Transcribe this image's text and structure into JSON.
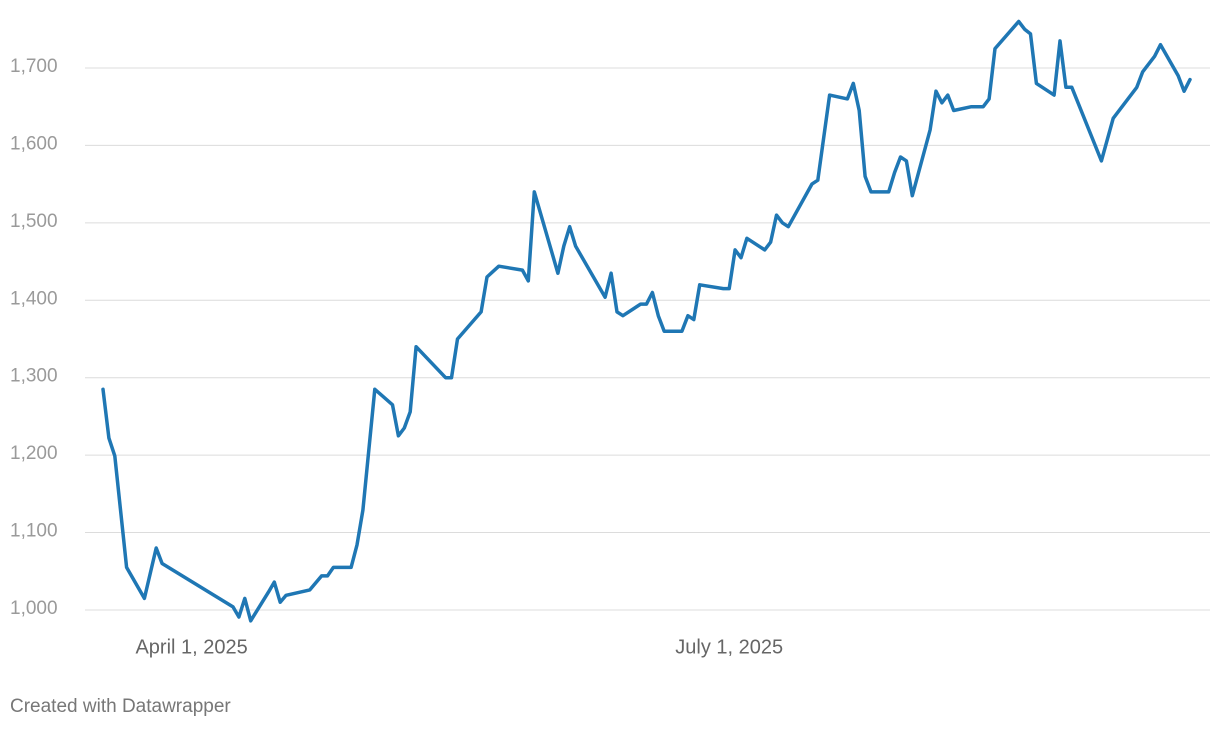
{
  "chart_data": {
    "type": "line",
    "footer": "Created with Datawrapper",
    "x": [
      "2025-03-17",
      "2025-03-18",
      "2025-03-19",
      "2025-03-21",
      "2025-03-24",
      "2025-03-26",
      "2025-03-27",
      "2025-04-08",
      "2025-04-09",
      "2025-04-10",
      "2025-04-11",
      "2025-04-14",
      "2025-04-15",
      "2025-04-16",
      "2025-04-17",
      "2025-04-21",
      "2025-04-23",
      "2025-04-24",
      "2025-04-25",
      "2025-04-28",
      "2025-04-29",
      "2025-04-30",
      "2025-05-02",
      "2025-05-05",
      "2025-05-06",
      "2025-05-07",
      "2025-05-08",
      "2025-05-09",
      "2025-05-14",
      "2025-05-15",
      "2025-05-16",
      "2025-05-20",
      "2025-05-21",
      "2025-05-22",
      "2025-05-23",
      "2025-05-27",
      "2025-05-28",
      "2025-05-29",
      "2025-06-02",
      "2025-06-03",
      "2025-06-04",
      "2025-06-05",
      "2025-06-10",
      "2025-06-11",
      "2025-06-12",
      "2025-06-13",
      "2025-06-16",
      "2025-06-17",
      "2025-06-18",
      "2025-06-19",
      "2025-06-20",
      "2025-06-23",
      "2025-06-24",
      "2025-06-25",
      "2025-06-26",
      "2025-06-30",
      "2025-07-01",
      "2025-07-02",
      "2025-07-03",
      "2025-07-04",
      "2025-07-07",
      "2025-07-08",
      "2025-07-09",
      "2025-07-10",
      "2025-07-11",
      "2025-07-15",
      "2025-07-16",
      "2025-07-18",
      "2025-07-21",
      "2025-07-22",
      "2025-07-23",
      "2025-07-24",
      "2025-07-25",
      "2025-07-28",
      "2025-07-29",
      "2025-07-30",
      "2025-07-31",
      "2025-08-01",
      "2025-08-04",
      "2025-08-05",
      "2025-08-06",
      "2025-08-07",
      "2025-08-08",
      "2025-08-11",
      "2025-08-13",
      "2025-08-14",
      "2025-08-15",
      "2025-08-19",
      "2025-08-20",
      "2025-08-21",
      "2025-08-22",
      "2025-08-25",
      "2025-08-26",
      "2025-08-27",
      "2025-08-28",
      "2025-09-02",
      "2025-09-04",
      "2025-09-08",
      "2025-09-09",
      "2025-09-11",
      "2025-09-12",
      "2025-09-15",
      "2025-09-16",
      "2025-09-17"
    ],
    "series": [
      {
        "color": "#1f77b4",
        "values": [
          1285,
          1222,
          1199,
          1055,
          1015,
          1080,
          1060,
          1004,
          991,
          1015,
          986,
          1023,
          1036,
          1010,
          1019,
          1026,
          1044,
          1044,
          1055,
          1055,
          1084,
          1129,
          1285,
          1265,
          1225,
          1235,
          1256,
          1340,
          1300,
          1300,
          1350,
          1385,
          1430,
          1437,
          1444,
          1439,
          1425,
          1540,
          1435,
          1470,
          1495,
          1470,
          1404,
          1435,
          1385,
          1380,
          1395,
          1395,
          1410,
          1380,
          1360,
          1360,
          1380,
          1375,
          1420,
          1415,
          1415,
          1465,
          1455,
          1480,
          1465,
          1475,
          1510,
          1500,
          1495,
          1550,
          1555,
          1665,
          1660,
          1680,
          1645,
          1560,
          1540,
          1540,
          1565,
          1585,
          1580,
          1535,
          1620,
          1670,
          1655,
          1665,
          1645,
          1650,
          1650,
          1660,
          1725,
          1760,
          1750,
          1744,
          1680,
          1665,
          1735,
          1675,
          1675,
          1580,
          1635,
          1675,
          1695,
          1715,
          1730,
          1690,
          1670,
          1685
        ]
      }
    ],
    "xlim": [
      "2025-03-17",
      "2025-09-17"
    ],
    "xticks": [
      {
        "value": "2025-04-01",
        "label": "April 1, 2025"
      },
      {
        "value": "2025-07-01",
        "label": "July 1, 2025"
      }
    ],
    "ylim": [
      985,
      1760
    ],
    "yticks": [
      {
        "value": 1000,
        "label": "1,000"
      },
      {
        "value": 1100,
        "label": "1,100"
      },
      {
        "value": 1200,
        "label": "1,200"
      },
      {
        "value": 1300,
        "label": "1,300"
      },
      {
        "value": 1400,
        "label": "1,400"
      },
      {
        "value": 1500,
        "label": "1,500"
      },
      {
        "value": 1600,
        "label": "1,600"
      },
      {
        "value": 1700,
        "label": "1,700"
      }
    ],
    "grid": true
  }
}
